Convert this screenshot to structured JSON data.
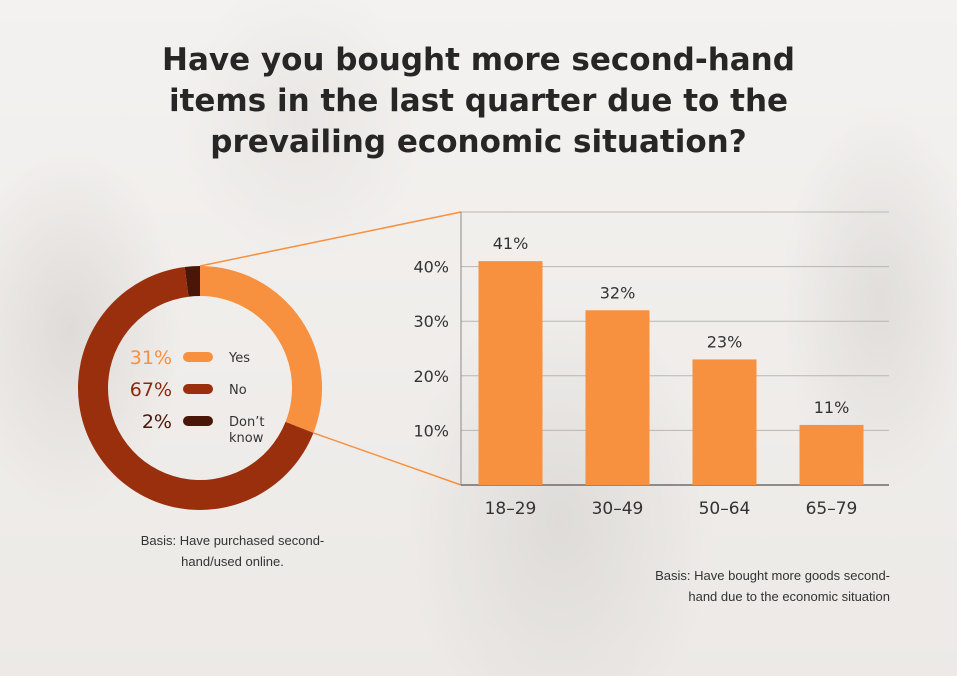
{
  "title": "Have you bought more second-hand items in the last quarter due to the prevailing economic situation?",
  "colors": {
    "yes": "#f7903f",
    "no": "#9a2f0e",
    "dont_know": "#4a1608",
    "bar": "#f7903f",
    "connector": "#f7903f"
  },
  "chart_data": [
    {
      "type": "pie",
      "style": "donut",
      "slices": [
        {
          "label": "Yes",
          "value": 31,
          "pct_label": "31%"
        },
        {
          "label": "No",
          "value": 67,
          "pct_label": "67%"
        },
        {
          "label": "Don’t know",
          "label_lines": [
            "Don’t",
            "know"
          ],
          "value": 2,
          "pct_label": "2%"
        }
      ],
      "legend": "center",
      "basis": "Basis: Have purchased second-hand/used online."
    },
    {
      "type": "bar",
      "categories": [
        "18–29",
        "30–49",
        "50–64",
        "65–79"
      ],
      "values": [
        41,
        32,
        23,
        11
      ],
      "value_labels": [
        "41%",
        "32%",
        "23%",
        "11%"
      ],
      "yticks": [
        "10%",
        "20%",
        "30%",
        "40%"
      ],
      "ylim": [
        0,
        50
      ],
      "grid": true,
      "basis": "Basis: Have bought more goods second-hand due to the economic situation"
    }
  ]
}
